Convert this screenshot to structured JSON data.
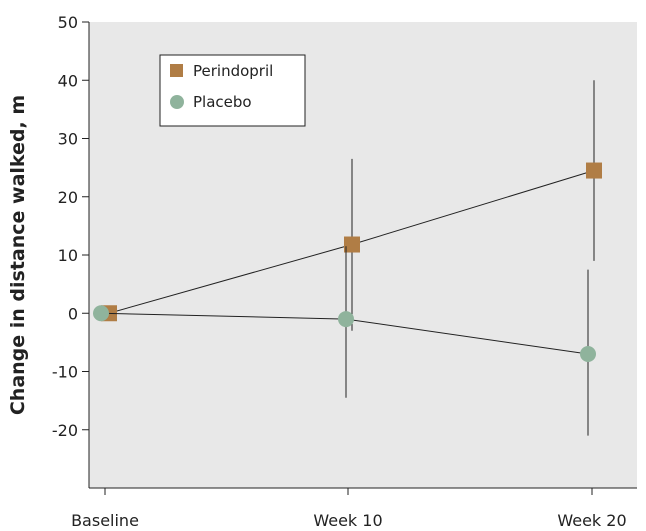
{
  "chart_data": {
    "type": "line",
    "title": "",
    "xlabel": "",
    "ylabel": "Change in distance walked, m",
    "ylim": [
      -30,
      50
    ],
    "yticks": [
      50,
      40,
      30,
      20,
      10,
      0,
      -10,
      -20
    ],
    "categories": [
      "Baseline",
      "Week 10",
      "Week 20"
    ],
    "grid": false,
    "legend_position": "top-left",
    "background": "#e8e8e8",
    "series": [
      {
        "name": "Perindopril",
        "marker": "square",
        "color": "#b07d45",
        "values": [
          0,
          11.8,
          24.5
        ],
        "lower": [
          0,
          -3,
          9
        ],
        "upper": [
          0,
          26.5,
          40
        ]
      },
      {
        "name": "Placebo",
        "marker": "circle",
        "color": "#8fb39c",
        "values": [
          0,
          -1,
          -7
        ],
        "lower": [
          0,
          -14.5,
          -21
        ],
        "upper": [
          0,
          11.5,
          7.5
        ]
      }
    ]
  }
}
